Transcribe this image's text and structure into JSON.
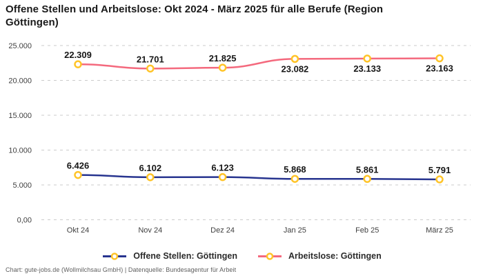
{
  "title": "Offene Stellen und Arbeitslose: Okt 2024 - März 2025 für alle Berufe (Region Göttingen)",
  "footer": "Chart: gute-jobs.de (Wollmilchsau GmbH) | Datenquelle: Bundesagentur für Arbeit",
  "chart_data": {
    "type": "line",
    "title": "Offene Stellen und Arbeitslose: Okt 2024 - März 2025 für alle Berufe (Region Göttingen)",
    "categories": [
      "Okt 24",
      "Nov 24",
      "Dez 24",
      "Jan 25",
      "Feb 25",
      "März 25"
    ],
    "series": [
      {
        "name": "Offene Stellen: Göttingen",
        "values": [
          6426,
          6102,
          6123,
          5868,
          5861,
          5791
        ],
        "labels": [
          "6.426",
          "6.102",
          "6.123",
          "5.868",
          "5.861",
          "5.791"
        ],
        "color": "#27348F",
        "label_positions": [
          "above",
          "above",
          "above",
          "above",
          "above",
          "above"
        ]
      },
      {
        "name": "Arbeitslose: Göttingen",
        "values": [
          22309,
          21701,
          21825,
          23082,
          23133,
          23163
        ],
        "labels": [
          "22.309",
          "21.701",
          "21.825",
          "23.082",
          "23.133",
          "23.163"
        ],
        "color": "#F4697D",
        "label_positions": [
          "above",
          "above",
          "above",
          "below",
          "below",
          "below"
        ]
      }
    ],
    "y_ticks": [
      {
        "value": 0,
        "label": "0,00"
      },
      {
        "value": 5000,
        "label": "5.000"
      },
      {
        "value": 10000,
        "label": "10.000"
      },
      {
        "value": 15000,
        "label": "15.000"
      },
      {
        "value": 20000,
        "label": "20.000"
      },
      {
        "value": 25000,
        "label": "25.000"
      }
    ],
    "ylim": [
      0,
      25000
    ],
    "grid": true,
    "legend_position": "bottom",
    "marker": {
      "fill": "#FFFFFF",
      "stroke": "#FFC428"
    },
    "grid_color": "#CBCBCB"
  }
}
